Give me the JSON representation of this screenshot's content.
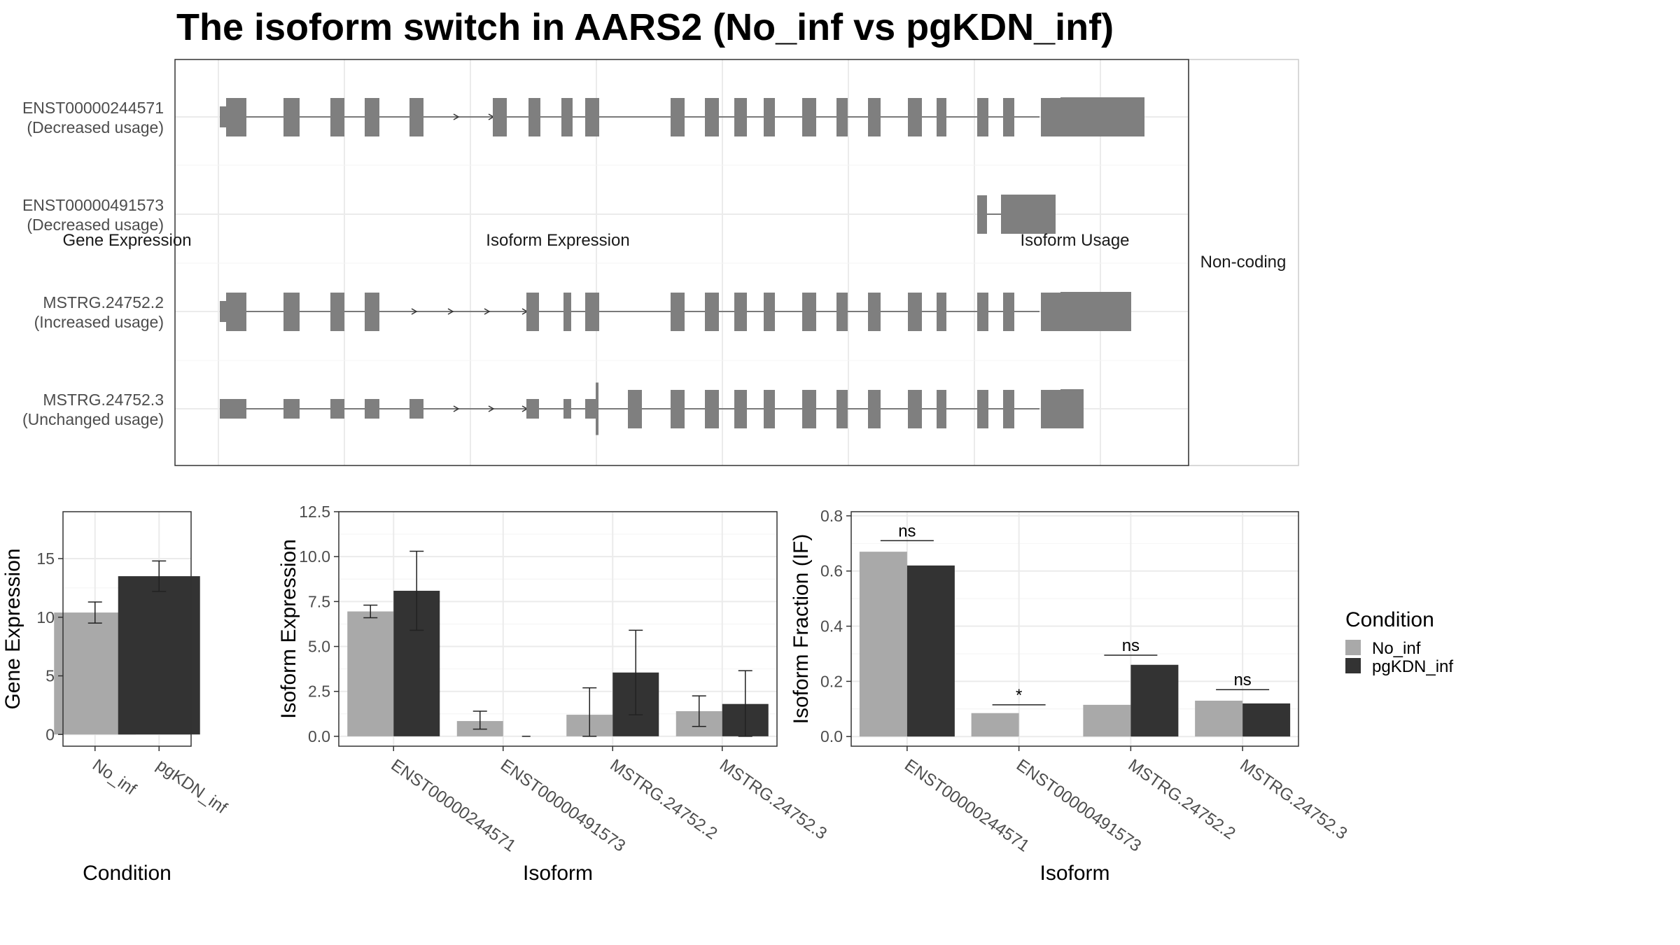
{
  "title": "The isoform switch in AARS2 (No_inf vs pgKDN_inf)",
  "structure_panel": {
    "strip_label": "Non-coding",
    "isoforms": [
      {
        "id": "ENST00000244571",
        "usage": "(Decreased usage)"
      },
      {
        "id": "ENST00000491573",
        "usage": "(Decreased usage)"
      },
      {
        "id": "MSTRG.24752.2",
        "usage": "(Increased usage)"
      },
      {
        "id": "MSTRG.24752.3",
        "usage": "(Unchanged usage)"
      }
    ]
  },
  "legend": {
    "title": "Condition",
    "items": [
      {
        "label": "No_inf",
        "color": "#a9a9a9"
      },
      {
        "label": "pgKDN_inf",
        "color": "#333333"
      }
    ]
  },
  "chart_data": [
    {
      "type": "bar",
      "title": "Gene Expression",
      "xlabel": "Condition",
      "ylabel": "Gene Expression",
      "categories": [
        "No_inf",
        "pgKDN_inf"
      ],
      "values": [
        10.4,
        13.5
      ],
      "errors": [
        [
          9.5,
          11.3
        ],
        [
          12.2,
          14.8
        ]
      ],
      "colors": [
        "#a9a9a9",
        "#333333"
      ],
      "ylim": [
        -1,
        19
      ],
      "yticks": [
        0,
        5,
        10,
        15
      ],
      "ytick_labels": [
        "0",
        "5",
        "10",
        "15"
      ]
    },
    {
      "type": "bar",
      "title": "Isoform Expression",
      "xlabel": "Isoform",
      "ylabel": "Isoform Expression",
      "categories": [
        "ENST00000244571",
        "ENST00000491573",
        "MSTRG.24752.2",
        "MSTRG.24752.3"
      ],
      "series": [
        {
          "name": "No_inf",
          "values": [
            6.95,
            0.85,
            1.2,
            1.4
          ],
          "errors": [
            [
              6.6,
              7.3
            ],
            [
              0.4,
              1.4
            ],
            [
              0.0,
              2.7
            ],
            [
              0.55,
              2.25
            ]
          ]
        },
        {
          "name": "pgKDN_inf",
          "values": [
            8.1,
            0.0,
            3.55,
            1.8
          ],
          "errors": [
            [
              5.9,
              10.3
            ],
            [
              0.0,
              0.0
            ],
            [
              1.2,
              5.9
            ],
            [
              0.0,
              3.65
            ]
          ]
        }
      ],
      "ylim": [
        -0.55,
        12.5
      ],
      "yticks": [
        0,
        2.5,
        5,
        7.5,
        10,
        12.5
      ],
      "ytick_labels": [
        "0.0",
        "2.5",
        "5.0",
        "7.5",
        "10.0",
        "12.5"
      ]
    },
    {
      "type": "bar",
      "title": "Isoform Usage",
      "xlabel": "Isoform",
      "ylabel": "Isoform Fraction (IF)",
      "categories": [
        "ENST00000244571",
        "ENST00000491573",
        "MSTRG.24752.2",
        "MSTRG.24752.3"
      ],
      "series": [
        {
          "name": "No_inf",
          "values": [
            0.67,
            0.085,
            0.115,
            0.13
          ]
        },
        {
          "name": "pgKDN_inf",
          "values": [
            0.62,
            0.0,
            0.26,
            0.12
          ]
        }
      ],
      "significance": [
        "ns",
        "*",
        "ns",
        "ns"
      ],
      "significance_y": [
        0.71,
        0.115,
        0.295,
        0.17
      ],
      "ylim": [
        -0.035,
        0.815
      ],
      "yticks": [
        0,
        0.2,
        0.4,
        0.6,
        0.8
      ],
      "ytick_labels": [
        "0.0",
        "0.2",
        "0.4",
        "0.6",
        "0.8"
      ]
    }
  ]
}
